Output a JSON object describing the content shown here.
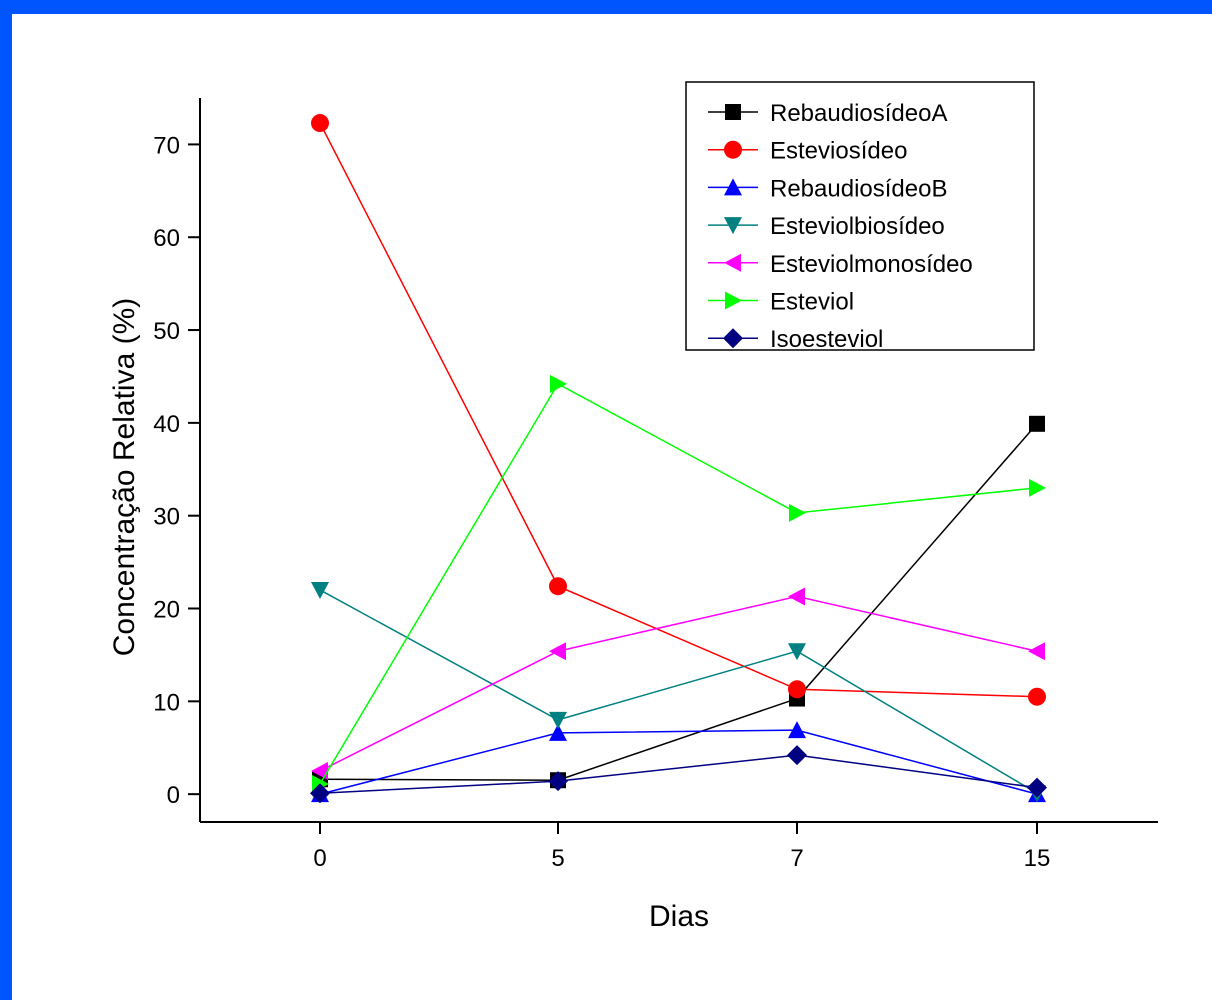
{
  "colors": {
    "frame": "#0055ff",
    "background": "#ffffff"
  },
  "chart_data": {
    "type": "line",
    "title": "",
    "xlabel": "Dias",
    "ylabel": "Concentração Relativa (%)",
    "categories": [
      "0",
      "5",
      "7",
      "15"
    ],
    "yticks": [
      "0",
      "10",
      "20",
      "30",
      "40",
      "50",
      "60",
      "70"
    ],
    "ylim": [
      -3,
      75
    ],
    "grid": false,
    "legend_position": "top-right",
    "series": [
      {
        "name": "RebaudiosídeoA",
        "color": "#000000",
        "marker": "square",
        "values": [
          1.6,
          1.5,
          10.3,
          39.9
        ]
      },
      {
        "name": "Esteviosídeo",
        "color": "#ff0000",
        "marker": "circle",
        "values": [
          72.3,
          22.4,
          11.3,
          10.5
        ]
      },
      {
        "name": "RebaudiosídeoB",
        "color": "#0000ff",
        "marker": "triangle-up",
        "values": [
          0.0,
          6.6,
          6.9,
          0.0
        ]
      },
      {
        "name": "Esteviolbiosídeo",
        "color": "#008080",
        "marker": "triangle-down",
        "values": [
          22.0,
          8.0,
          15.4,
          0.1
        ]
      },
      {
        "name": "Esteviolmonosídeo",
        "color": "#ff00ff",
        "marker": "triangle-left",
        "values": [
          2.5,
          15.4,
          21.3,
          15.4
        ]
      },
      {
        "name": "Esteviol",
        "color": "#00ff00",
        "marker": "triangle-right",
        "values": [
          1.1,
          44.2,
          30.3,
          33.0
        ]
      },
      {
        "name": "Isoesteviol",
        "color": "#000080",
        "marker": "diamond",
        "values": [
          0.1,
          1.4,
          4.2,
          0.7
        ]
      }
    ]
  }
}
